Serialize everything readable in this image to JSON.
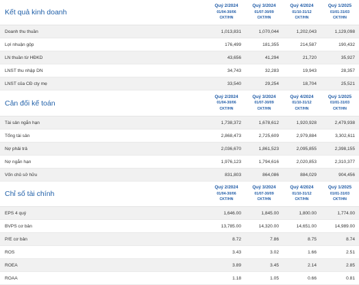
{
  "quarters": [
    {
      "name": "Quý 2/2024",
      "range": "01/04-30/06",
      "type": "CKT/HN"
    },
    {
      "name": "Quý 3/2024",
      "range": "01/07-30/09",
      "type": "CKT/HN"
    },
    {
      "name": "Quý 4/2024",
      "range": "01/10-31/12",
      "type": "CKT/HN"
    },
    {
      "name": "Quý 1/2025",
      "range": "01/01-31/03",
      "type": "CKT/HN"
    }
  ],
  "income": {
    "title": "Kết quả kinh doanh",
    "rows": [
      {
        "label": "Doanh thu thuần",
        "values": [
          "1,013,831",
          "1,070,044",
          "1,202,043",
          "1,129,098"
        ]
      },
      {
        "label": "Lợi nhuận gộp",
        "values": [
          "176,499",
          "181,355",
          "214,587",
          "190,432"
        ]
      },
      {
        "label": "LN thuần từ HĐKD",
        "values": [
          "43,656",
          "41,294",
          "21,720",
          "35,927"
        ]
      },
      {
        "label": "LNST thu nhập DN",
        "values": [
          "34,743",
          "32,283",
          "19,943",
          "28,357"
        ]
      },
      {
        "label": "LNST của CĐ cty mẹ",
        "values": [
          "33,540",
          "29,254",
          "18,704",
          "25,521"
        ]
      }
    ]
  },
  "balance": {
    "title": "Cân đối kế toán",
    "rows": [
      {
        "label": "Tài sản ngắn hạn",
        "values": [
          "1,738,372",
          "1,678,612",
          "1,920,928",
          "2,479,938"
        ]
      },
      {
        "label": "Tổng tài sản",
        "values": [
          "2,868,473",
          "2,725,609",
          "2,979,884",
          "3,302,611"
        ]
      },
      {
        "label": "Nợ phải trả",
        "values": [
          "2,036,670",
          "1,861,523",
          "2,095,855",
          "2,398,155"
        ]
      },
      {
        "label": "Nợ ngắn hạn",
        "values": [
          "1,976,123",
          "1,794,616",
          "2,020,853",
          "2,310,377"
        ]
      },
      {
        "label": "Vốn chủ sở hữu",
        "values": [
          "831,803",
          "864,086",
          "884,029",
          "904,456"
        ]
      }
    ]
  },
  "ratios": {
    "title": "Chỉ số tài chính",
    "rows": [
      {
        "label": "EPS 4 quý",
        "values": [
          "1,646.00",
          "1,845.00",
          "1,800.00",
          "1,774.00"
        ]
      },
      {
        "label": "BVPS cơ bản",
        "values": [
          "13,785.00",
          "14,320.00",
          "14,651.00",
          "14,989.00"
        ]
      },
      {
        "label": "P/E cơ bản",
        "values": [
          "8.72",
          "7.86",
          "8.75",
          "8.74"
        ]
      },
      {
        "label": "ROS",
        "values": [
          "3.43",
          "3.02",
          "1.66",
          "2.51"
        ]
      },
      {
        "label": "ROEA",
        "values": [
          "3.89",
          "3.45",
          "2.14",
          "2.85"
        ]
      },
      {
        "label": "ROAA",
        "values": [
          "1.18",
          "1.05",
          "0.66",
          "0.81"
        ]
      }
    ]
  }
}
